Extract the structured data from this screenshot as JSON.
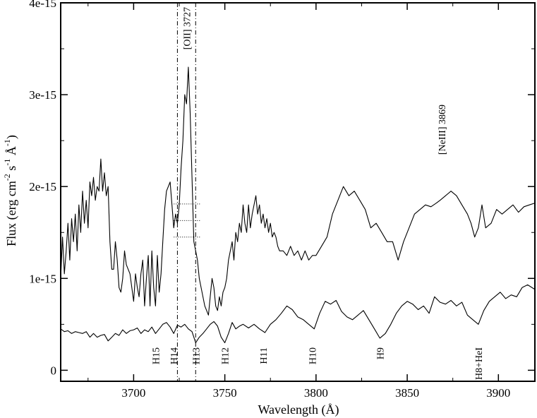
{
  "chart_data": {
    "type": "line",
    "title": "",
    "xlabel": "Wavelength  (Å)",
    "ylabel_parts": [
      "Flux (erg cm",
      "-2",
      " s",
      "-1",
      " Å",
      "-1",
      ")"
    ],
    "xlim": [
      3660,
      3920
    ],
    "ylim": [
      -1.2e-16,
      4e-15
    ],
    "x_ticks": [
      3700,
      3750,
      3800,
      3850,
      3900
    ],
    "x_tick_labels": [
      "3700",
      "3750",
      "3800",
      "3850",
      "3900"
    ],
    "y_ticks": [
      0,
      1e-15,
      2e-15,
      3e-15,
      4e-15
    ],
    "y_tick_labels": [
      "0",
      "1e-15",
      "2e-15",
      "3e-15",
      "4e-15"
    ],
    "grid": false,
    "emission_labels": [
      {
        "text": "[OII] 3727",
        "x": 3729
      },
      {
        "text": "[NeIII] 3869",
        "x": 3869
      }
    ],
    "balmer_labels": [
      {
        "text": "H15",
        "x": 3712
      },
      {
        "text": "H14",
        "x": 3722
      },
      {
        "text": "H13",
        "x": 3734
      },
      {
        "text": "H12",
        "x": 3750
      },
      {
        "text": "H11",
        "x": 3771
      },
      {
        "text": "H10",
        "x": 3798
      },
      {
        "text": "H9",
        "x": 3835
      },
      {
        "text": "H8+HeI",
        "x": 3889
      }
    ],
    "vertical_lines": [
      3724,
      3734
    ],
    "horizontal_ref_lines": [
      {
        "y": 1.81e-15,
        "x": [
          3722,
          3737
        ]
      },
      {
        "y": 1.63e-15,
        "x": [
          3722,
          3737
        ]
      },
      {
        "y": 1.45e-15,
        "x": [
          3722,
          3737
        ]
      }
    ],
    "series": [
      {
        "x": [
          3660,
          3661,
          3662,
          3663,
          3664,
          3665,
          3666,
          3667,
          3668,
          3669,
          3670,
          3671,
          3672,
          3673,
          3674,
          3675,
          3676,
          3677,
          3678,
          3679,
          3680,
          3681,
          3682,
          3683,
          3684,
          3685,
          3686,
          3687,
          3688,
          3689,
          3690,
          3691,
          3692,
          3693,
          3694,
          3695,
          3696,
          3697,
          3698,
          3699,
          3700,
          3701,
          3702,
          3703,
          3704,
          3705,
          3706,
          3707,
          3708,
          3709,
          3710,
          3711,
          3712,
          3713,
          3714,
          3715,
          3716,
          3717,
          3718,
          3719,
          3720,
          3721,
          3722,
          3723,
          3724,
          3725,
          3726,
          3727,
          3728,
          3729,
          3730,
          3731,
          3732,
          3733,
          3734,
          3735,
          3736,
          3737,
          3738,
          3739,
          3740,
          3741,
          3742,
          3743,
          3744,
          3745,
          3746,
          3747,
          3748,
          3749,
          3750,
          3751,
          3752,
          3753,
          3754,
          3755,
          3756,
          3757,
          3758,
          3759,
          3760,
          3761,
          3762,
          3763,
          3764,
          3765,
          3766,
          3767,
          3768,
          3769,
          3770,
          3771,
          3772,
          3773,
          3774,
          3775,
          3776,
          3777,
          3778,
          3779,
          3780,
          3782,
          3784,
          3786,
          3788,
          3790,
          3792,
          3794,
          3796,
          3798,
          3800,
          3803,
          3806,
          3809,
          3812,
          3815,
          3818,
          3821,
          3824,
          3827,
          3830,
          3833,
          3836,
          3839,
          3842,
          3845,
          3848,
          3851,
          3854,
          3857,
          3860,
          3863,
          3866,
          3868,
          3871,
          3874,
          3877,
          3880,
          3883,
          3885,
          3887,
          3889,
          3891,
          3893,
          3896,
          3899,
          3902,
          3905,
          3908,
          3911,
          3914,
          3917,
          3920
        ],
        "y": [
          1.0,
          1.45,
          1.05,
          1.3,
          1.6,
          1.2,
          1.65,
          1.4,
          1.7,
          1.3,
          1.8,
          1.5,
          1.95,
          1.6,
          1.85,
          1.55,
          2.05,
          1.9,
          2.1,
          1.85,
          2.0,
          1.95,
          2.3,
          1.95,
          2.15,
          1.9,
          2.0,
          1.4,
          1.1,
          1.1,
          1.4,
          1.2,
          0.9,
          0.85,
          1.0,
          1.3,
          1.15,
          1.1,
          1.05,
          0.9,
          0.75,
          1.05,
          0.9,
          0.8,
          1.05,
          1.2,
          0.7,
          1.0,
          1.25,
          0.7,
          1.3,
          0.9,
          0.7,
          1.25,
          0.85,
          1.05,
          1.4,
          1.75,
          1.95,
          2.0,
          2.05,
          1.8,
          1.55,
          1.7,
          1.6,
          1.8,
          2.2,
          2.5,
          3.0,
          2.9,
          3.3,
          2.8,
          2.1,
          1.4,
          1.3,
          1.2,
          1.0,
          0.9,
          0.8,
          0.7,
          0.65,
          0.6,
          0.8,
          1.0,
          0.9,
          0.7,
          0.65,
          0.8,
          0.7,
          0.85,
          0.9,
          1.0,
          1.2,
          1.3,
          1.4,
          1.2,
          1.5,
          1.4,
          1.6,
          1.5,
          1.8,
          1.6,
          1.5,
          1.8,
          1.55,
          1.7,
          1.8,
          1.9,
          1.7,
          1.8,
          1.6,
          1.7,
          1.55,
          1.65,
          1.5,
          1.6,
          1.45,
          1.5,
          1.45,
          1.35,
          1.3,
          1.3,
          1.25,
          1.35,
          1.25,
          1.3,
          1.2,
          1.3,
          1.2,
          1.25,
          1.25,
          1.35,
          1.45,
          1.7,
          1.85,
          2.0,
          1.9,
          1.95,
          1.85,
          1.75,
          1.55,
          1.6,
          1.5,
          1.4,
          1.4,
          1.2,
          1.4,
          1.55,
          1.7,
          1.75,
          1.8,
          1.78,
          1.82,
          1.85,
          1.9,
          1.95,
          1.9,
          1.8,
          1.7,
          1.6,
          1.45,
          1.55,
          1.8,
          1.55,
          1.6,
          1.75,
          1.7,
          1.75,
          1.8,
          1.72,
          1.78,
          1.8,
          1.82
        ]
      },
      {
        "x": [
          3660,
          3662,
          3664,
          3666,
          3668,
          3670,
          3672,
          3674,
          3676,
          3678,
          3680,
          3682,
          3684,
          3686,
          3688,
          3690,
          3692,
          3694,
          3696,
          3698,
          3700,
          3702,
          3704,
          3706,
          3708,
          3710,
          3712,
          3714,
          3716,
          3718,
          3720,
          3722,
          3724,
          3726,
          3728,
          3730,
          3732,
          3734,
          3736,
          3738,
          3740,
          3742,
          3744,
          3746,
          3748,
          3750,
          3752,
          3754,
          3756,
          3758,
          3760,
          3763,
          3766,
          3769,
          3772,
          3775,
          3778,
          3781,
          3784,
          3787,
          3790,
          3793,
          3796,
          3799,
          3802,
          3805,
          3808,
          3811,
          3814,
          3817,
          3820,
          3823,
          3826,
          3829,
          3832,
          3835,
          3838,
          3841,
          3844,
          3847,
          3850,
          3853,
          3856,
          3859,
          3862,
          3865,
          3868,
          3871,
          3874,
          3877,
          3880,
          3883,
          3886,
          3889,
          3892,
          3895,
          3898,
          3901,
          3904,
          3907,
          3910,
          3913,
          3916,
          3920
        ],
        "y": [
          0.45,
          0.42,
          0.43,
          0.4,
          0.42,
          0.41,
          0.4,
          0.42,
          0.36,
          0.4,
          0.36,
          0.38,
          0.39,
          0.32,
          0.36,
          0.4,
          0.38,
          0.44,
          0.4,
          0.43,
          0.44,
          0.46,
          0.4,
          0.44,
          0.42,
          0.47,
          0.4,
          0.45,
          0.5,
          0.52,
          0.47,
          0.4,
          0.49,
          0.47,
          0.5,
          0.45,
          0.42,
          0.3,
          0.36,
          0.4,
          0.45,
          0.5,
          0.53,
          0.48,
          0.36,
          0.3,
          0.4,
          0.52,
          0.45,
          0.48,
          0.5,
          0.46,
          0.5,
          0.45,
          0.41,
          0.5,
          0.55,
          0.62,
          0.7,
          0.66,
          0.58,
          0.55,
          0.5,
          0.45,
          0.62,
          0.75,
          0.72,
          0.76,
          0.64,
          0.58,
          0.55,
          0.6,
          0.65,
          0.55,
          0.45,
          0.35,
          0.4,
          0.5,
          0.62,
          0.7,
          0.75,
          0.72,
          0.66,
          0.7,
          0.62,
          0.8,
          0.74,
          0.72,
          0.76,
          0.7,
          0.74,
          0.6,
          0.55,
          0.5,
          0.65,
          0.75,
          0.8,
          0.85,
          0.78,
          0.82,
          0.8,
          0.9,
          0.93,
          0.88
        ]
      }
    ],
    "y_scale_note": "series values above are in units of 1e-15"
  }
}
